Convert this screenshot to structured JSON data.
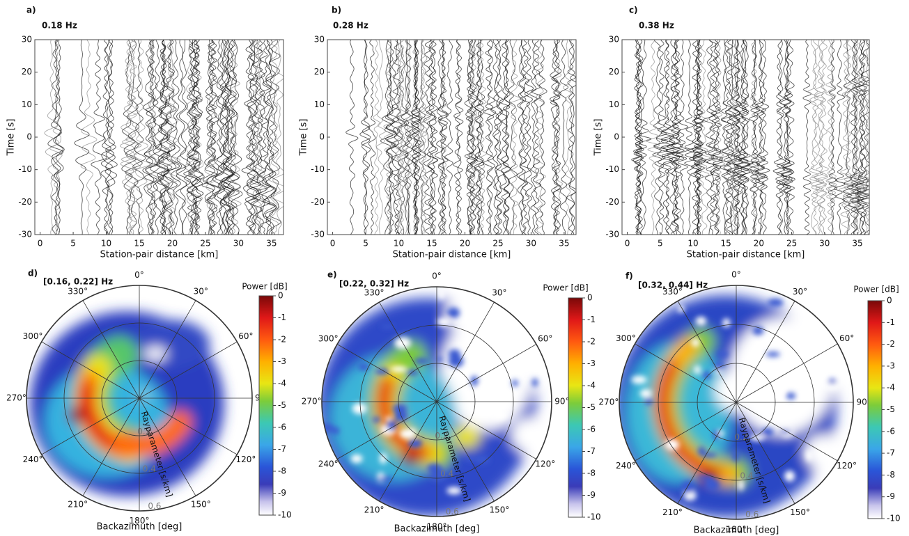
{
  "chart_data": [
    {
      "type": "wiggle",
      "label": "a)",
      "title": "0.18 Hz",
      "xlabel": "Station-pair distance [km]",
      "ylabel": "Time [s]",
      "xlim": [
        -0.8,
        36.8
      ],
      "ylim": [
        -30,
        30
      ],
      "xticks": [
        0,
        5,
        10,
        15,
        20,
        25,
        30,
        35
      ],
      "yticks": [
        -30,
        -20,
        -10,
        0,
        10,
        20,
        30
      ]
    },
    {
      "type": "wiggle",
      "label": "b)",
      "title": "0.28 Hz",
      "xlabel": "Station-pair distance [km]",
      "ylabel": "Time [s]",
      "xlim": [
        -0.8,
        36.8
      ],
      "ylim": [
        -30,
        30
      ],
      "xticks": [
        0,
        5,
        10,
        15,
        20,
        25,
        30,
        35
      ],
      "yticks": [
        -30,
        -20,
        -10,
        0,
        10,
        20,
        30
      ]
    },
    {
      "type": "wiggle",
      "label": "c)",
      "title": "0.38 Hz",
      "xlabel": "Station-pair distance [km]",
      "ylabel": "Time [s]",
      "xlim": [
        -0.8,
        36.8
      ],
      "ylim": [
        -30,
        30
      ],
      "xticks": [
        0,
        5,
        10,
        15,
        20,
        25,
        30,
        35
      ],
      "yticks": [
        -30,
        -20,
        -10,
        0,
        10,
        20,
        30
      ]
    },
    {
      "type": "polar",
      "label": "d)",
      "title": "[0.16, 0.22] Hz",
      "xlabel": "Backazimuth [deg]",
      "rlabel": "Rayparameter [s/km]",
      "rlim": [
        0,
        0.6
      ],
      "rticks": [
        0.2,
        0.4,
        0.6
      ],
      "thetaticks": [
        {
          "value": 0,
          "label": "0°"
        },
        {
          "value": 30,
          "label": "30°"
        },
        {
          "value": 60,
          "label": "60°"
        },
        {
          "value": 90,
          "label": "90°"
        },
        {
          "value": 120,
          "label": "120°"
        },
        {
          "value": 150,
          "label": "150°"
        },
        {
          "value": 180,
          "label": "180°"
        },
        {
          "value": 210,
          "label": "210°"
        },
        {
          "value": 240,
          "label": "240°"
        },
        {
          "value": 270,
          "label": "270°"
        },
        {
          "value": 300,
          "label": "300°"
        },
        {
          "value": 330,
          "label": "330°"
        }
      ],
      "colorbar": {
        "label": "Power [dB]",
        "lim": [
          -10,
          0
        ],
        "ticks": [
          0,
          -1,
          -2,
          -3,
          -4,
          -5,
          -6,
          -7,
          -8,
          -9,
          -10
        ]
      }
    },
    {
      "type": "polar",
      "label": "e)",
      "title": "[0.22, 0.32] Hz",
      "xlabel": "Backazimuth [deg]",
      "rlabel": "Rayparameter [s/km]",
      "rlim": [
        0,
        0.6
      ],
      "rticks": [
        0.2,
        0.4,
        0.6
      ],
      "thetaticks": [
        {
          "value": 0,
          "label": "0°"
        },
        {
          "value": 30,
          "label": "30°"
        },
        {
          "value": 60,
          "label": "60°"
        },
        {
          "value": 90,
          "label": "90°"
        },
        {
          "value": 120,
          "label": "120°"
        },
        {
          "value": 150,
          "label": "150°"
        },
        {
          "value": 180,
          "label": "180°"
        },
        {
          "value": 210,
          "label": "210°"
        },
        {
          "value": 240,
          "label": "240°"
        },
        {
          "value": 270,
          "label": "270°"
        },
        {
          "value": 300,
          "label": "300°"
        },
        {
          "value": 330,
          "label": "330°"
        }
      ],
      "colorbar": {
        "label": "Power [dB]",
        "lim": [
          -10,
          0
        ],
        "ticks": [
          0,
          -1,
          -2,
          -3,
          -4,
          -5,
          -6,
          -7,
          -8,
          -9,
          -10
        ]
      }
    },
    {
      "type": "polar",
      "label": "f)",
      "title": "[0.32, 0.44] Hz",
      "xlabel": "Backazimuth [deg]",
      "rlabel": "Rayparameter [s/km]",
      "rlim": [
        0,
        0.6
      ],
      "rticks": [
        0.2,
        0.4,
        0.6
      ],
      "thetaticks": [
        {
          "value": 0,
          "label": "0°"
        },
        {
          "value": 30,
          "label": "30°"
        },
        {
          "value": 60,
          "label": "60°"
        },
        {
          "value": 90,
          "label": "90°"
        },
        {
          "value": 120,
          "label": "120°"
        },
        {
          "value": 150,
          "label": "150°"
        },
        {
          "value": 180,
          "label": "180°"
        },
        {
          "value": 210,
          "label": "210°"
        },
        {
          "value": 240,
          "label": "240°"
        },
        {
          "value": 270,
          "label": "270°"
        },
        {
          "value": 300,
          "label": "300°"
        },
        {
          "value": 330,
          "label": "330°"
        }
      ],
      "colorbar": {
        "label": "Power [dB]",
        "lim": [
          -10,
          0
        ],
        "ticks": [
          0,
          -1,
          -2,
          -3,
          -4,
          -5,
          -6,
          -7,
          -8,
          -9,
          -10
        ]
      }
    }
  ]
}
